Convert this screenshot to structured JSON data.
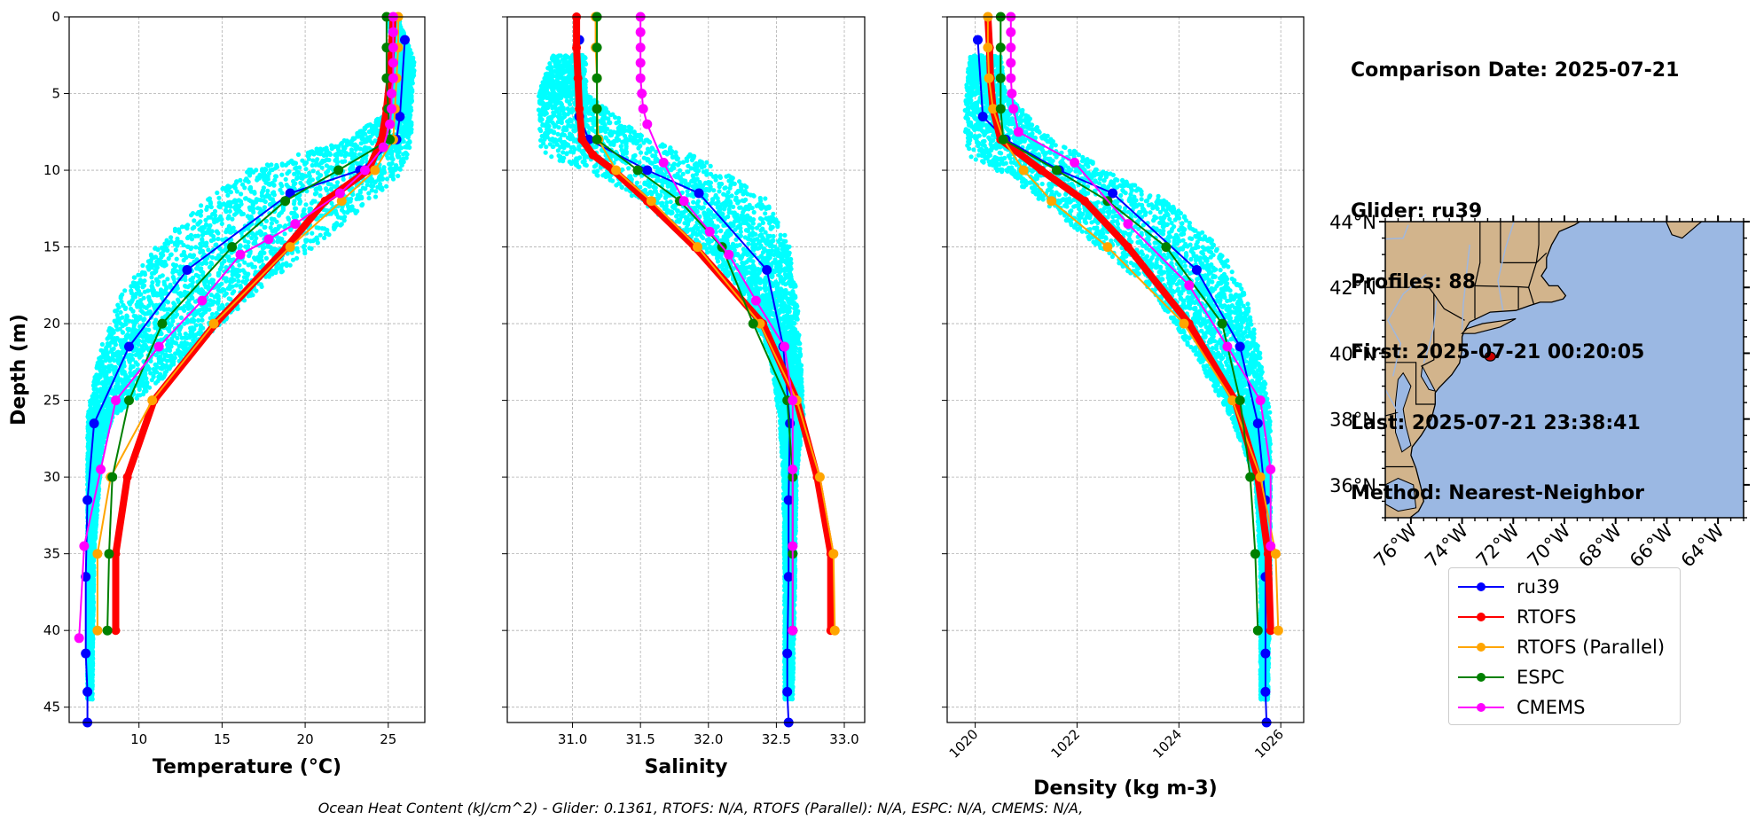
{
  "info": {
    "comparison_date": "Comparison Date: 2025-07-21",
    "glider": "Glider: ru39",
    "profiles": "Profiles: 88",
    "first": "First: 2025-07-21 00:20:05",
    "last": "Last: 2025-07-21 23:38:41",
    "method": "Method: Nearest-Neighbor"
  },
  "footer": "Ocean Heat Content (kJ/cm^2) - Glider: 0.1361,  RTOFS: N/A,  RTOFS (Parallel): N/A,  ESPC: N/A,  CMEMS: N/A,",
  "colors": {
    "ru39": "#0000ff",
    "rtofs": "#ff0000",
    "rtofs_parallel": "#ffa500",
    "espc": "#008000",
    "cmems": "#ff00ff",
    "scatter": "#00ffff",
    "land": "#d2b48c",
    "ocean": "#9bb8e3",
    "track": "#cc0000"
  },
  "legend": [
    {
      "name": "ru39",
      "color": "#0000ff"
    },
    {
      "name": "RTOFS",
      "color": "#ff0000"
    },
    {
      "name": "RTOFS (Parallel)",
      "color": "#ffa500"
    },
    {
      "name": "ESPC",
      "color": "#008000"
    },
    {
      "name": "CMEMS",
      "color": "#ff00ff"
    }
  ],
  "chart_data": [
    {
      "type": "line",
      "xlabel": "Temperature (°C)",
      "ylabel": "Depth (m)",
      "xlim": [
        5.8,
        27.2
      ],
      "ylim": [
        46,
        0
      ],
      "xticks": [
        10,
        15,
        20,
        25
      ],
      "yticks": [
        0,
        5,
        10,
        15,
        20,
        25,
        30,
        35,
        40,
        45
      ],
      "grid": true,
      "scatter": {
        "name": "glider profiles",
        "color": "#00ffff",
        "envelope": [
          [
            0,
            24.9,
            25.6
          ],
          [
            3,
            25.5,
            26.6
          ],
          [
            6,
            25.2,
            26.4
          ],
          [
            8,
            22.5,
            26.4
          ],
          [
            9,
            19.5,
            26.2
          ],
          [
            10,
            16.5,
            26.0
          ],
          [
            12,
            14.0,
            24.0
          ],
          [
            15,
            11.0,
            20.5
          ],
          [
            18,
            9.0,
            17.0
          ],
          [
            21,
            7.8,
            14.0
          ],
          [
            24,
            7.2,
            11.0
          ],
          [
            26,
            6.9,
            8.5
          ],
          [
            28,
            6.9,
            7.8
          ],
          [
            35,
            6.9,
            7.3
          ],
          [
            44.5,
            6.9,
            7.2
          ]
        ]
      },
      "series": [
        {
          "name": "ru39",
          "style": "thin",
          "x": [
            26.0,
            25.7,
            25.5,
            23.3,
            19.1,
            12.9,
            9.4,
            7.3,
            6.9,
            6.8,
            6.8,
            6.9,
            6.9
          ],
          "y": [
            1.5,
            6.5,
            8.0,
            10.0,
            11.5,
            16.5,
            21.5,
            26.5,
            31.5,
            36.5,
            41.5,
            44.0,
            46.0
          ]
        },
        {
          "name": "RTOFS",
          "style": "thick",
          "x": [
            25.3,
            25.2,
            25.1,
            24.9,
            24.6,
            23.8,
            21.2,
            18.9,
            14.6,
            10.9,
            9.3,
            8.6,
            8.6
          ],
          "y": [
            0,
            2,
            4,
            6,
            8,
            10,
            12,
            15,
            20,
            25,
            30,
            35,
            40
          ]
        },
        {
          "name": "RTOFS (Parallel)",
          "style": "thin",
          "x": [
            25.6,
            25.6,
            25.5,
            25.4,
            25.3,
            24.2,
            22.2,
            19.1,
            14.5,
            10.8,
            8.3,
            7.5,
            7.5
          ],
          "y": [
            0,
            2,
            4,
            6,
            8,
            10,
            12,
            15,
            20,
            25,
            30,
            35,
            40
          ]
        },
        {
          "name": "ESPC",
          "style": "thin",
          "x": [
            24.9,
            24.9,
            24.9,
            25.0,
            25.1,
            22.0,
            18.8,
            15.6,
            11.4,
            9.4,
            8.4,
            8.2,
            8.1
          ],
          "y": [
            0,
            2,
            4,
            6,
            8,
            10,
            12,
            15,
            20,
            25,
            30,
            35,
            40
          ]
        },
        {
          "name": "CMEMS",
          "style": "thin",
          "x": [
            25.3,
            25.3,
            25.3,
            25.3,
            25.3,
            25.2,
            25.2,
            25.1,
            24.7,
            23.6,
            22.1,
            19.4,
            17.8,
            16.1,
            13.8,
            11.2,
            8.6,
            7.7,
            6.7,
            6.4
          ],
          "y": [
            0,
            1,
            2,
            3,
            4,
            5,
            6,
            7,
            8.5,
            10,
            11.5,
            13.5,
            14.5,
            15.5,
            18.5,
            21.5,
            25,
            29.5,
            34.5,
            40.5
          ]
        }
      ]
    },
    {
      "type": "line",
      "xlabel": "Salinity",
      "ylabel": "",
      "xlim": [
        30.52,
        33.15
      ],
      "ylim": [
        46,
        0
      ],
      "xticks": [
        31.0,
        31.5,
        32.0,
        32.5,
        33.0
      ],
      "yticks": [
        0,
        5,
        10,
        15,
        20,
        25,
        30,
        35,
        40,
        45
      ],
      "grid": true,
      "scatter": {
        "name": "glider profiles",
        "color": "#00ffff",
        "envelope": [
          [
            2.5,
            30.85,
            31.1
          ],
          [
            5,
            30.75,
            31.1
          ],
          [
            8,
            30.75,
            31.55
          ],
          [
            9,
            30.78,
            31.9
          ],
          [
            10,
            31.1,
            32.1
          ],
          [
            12,
            31.5,
            32.45
          ],
          [
            15,
            31.95,
            32.6
          ],
          [
            18,
            32.25,
            32.65
          ],
          [
            22,
            32.45,
            32.68
          ],
          [
            26,
            32.52,
            32.7
          ],
          [
            30,
            32.55,
            32.65
          ],
          [
            36,
            32.56,
            32.64
          ],
          [
            44.5,
            32.56,
            32.62
          ]
        ]
      },
      "series": [
        {
          "name": "ru39",
          "style": "thin",
          "x": [
            31.05,
            31.05,
            31.12,
            31.55,
            31.93,
            32.43,
            32.55,
            32.6,
            32.59,
            32.59,
            32.58,
            32.58,
            32.59
          ],
          "y": [
            1.5,
            6.5,
            8.0,
            10.0,
            11.5,
            16.5,
            21.5,
            26.5,
            31.5,
            36.5,
            41.5,
            44.0,
            46.0
          ]
        },
        {
          "name": "RTOFS",
          "style": "thick",
          "x": [
            31.03,
            31.03,
            31.04,
            31.05,
            31.07,
            31.15,
            31.3,
            31.55,
            31.9,
            32.4,
            32.65,
            32.8,
            32.9,
            32.9
          ],
          "y": [
            0,
            2,
            4,
            6,
            8,
            9,
            10,
            12,
            15,
            20,
            25,
            30,
            35,
            40
          ]
        },
        {
          "name": "RTOFS (Parallel)",
          "style": "thin",
          "x": [
            31.17,
            31.17,
            31.18,
            31.18,
            31.19,
            31.32,
            31.58,
            31.92,
            32.38,
            32.65,
            32.82,
            32.92,
            32.93
          ],
          "y": [
            0,
            2,
            4,
            6,
            8,
            10,
            12,
            15,
            20,
            25,
            30,
            35,
            40
          ]
        },
        {
          "name": "ESPC",
          "style": "thin",
          "x": [
            31.18,
            31.18,
            31.18,
            31.18,
            31.18,
            31.48,
            31.79,
            32.1,
            32.33,
            32.58,
            32.62,
            32.62,
            32.62
          ],
          "y": [
            0,
            2,
            4,
            6,
            8,
            10,
            12,
            15,
            20,
            25,
            30,
            35,
            40
          ]
        },
        {
          "name": "CMEMS",
          "style": "thin",
          "x": [
            31.5,
            31.5,
            31.5,
            31.5,
            31.5,
            31.51,
            31.52,
            31.55,
            31.67,
            31.82,
            32.01,
            32.15,
            32.35,
            32.56,
            32.62,
            32.62,
            32.62,
            32.62
          ],
          "y": [
            0,
            1,
            2,
            3,
            4,
            5,
            6,
            7,
            9.5,
            12,
            14,
            15.5,
            18.5,
            21.5,
            25,
            29.5,
            34.5,
            40
          ]
        }
      ]
    },
    {
      "type": "line",
      "xlabel": "Density (kg m-3)",
      "ylabel": "",
      "xlim": [
        1019.45,
        1026.45
      ],
      "ylim": [
        46,
        0
      ],
      "xticks": [
        1020,
        1022,
        1024,
        1026
      ],
      "yticks": [
        0,
        5,
        10,
        15,
        20,
        25,
        30,
        35,
        40,
        45
      ],
      "grid": true,
      "scatter": {
        "name": "glider profiles",
        "color": "#00ffff",
        "envelope": [
          [
            2.5,
            1019.9,
            1020.5
          ],
          [
            5,
            1019.8,
            1020.6
          ],
          [
            8,
            1019.8,
            1021.5
          ],
          [
            9,
            1019.85,
            1022.1
          ],
          [
            10,
            1020.4,
            1022.6
          ],
          [
            12,
            1021.3,
            1023.8
          ],
          [
            15,
            1022.4,
            1024.8
          ],
          [
            18,
            1023.5,
            1025.3
          ],
          [
            22,
            1024.3,
            1025.6
          ],
          [
            26,
            1025.0,
            1025.8
          ],
          [
            30,
            1025.5,
            1025.8
          ],
          [
            36,
            1025.6,
            1025.8
          ],
          [
            44.5,
            1025.6,
            1025.75
          ]
        ]
      },
      "series": [
        {
          "name": "ru39",
          "style": "thin",
          "x": [
            1020.05,
            1020.15,
            1020.6,
            1021.65,
            1022.7,
            1024.35,
            1025.2,
            1025.55,
            1025.7,
            1025.7,
            1025.7,
            1025.7,
            1025.72
          ],
          "y": [
            1.5,
            6.5,
            8.0,
            10.0,
            11.5,
            16.5,
            21.5,
            26.5,
            31.5,
            36.5,
            41.5,
            44.0,
            46.0
          ]
        },
        {
          "name": "RTOFS",
          "style": "thick",
          "x": [
            1020.25,
            1020.28,
            1020.3,
            1020.35,
            1020.5,
            1021.3,
            1022.15,
            1023.0,
            1024.2,
            1025.1,
            1025.55,
            1025.75,
            1025.8
          ],
          "y": [
            0,
            2,
            4,
            6,
            8,
            10,
            12,
            15,
            20,
            25,
            30,
            35,
            40
          ]
        },
        {
          "name": "RTOFS (Parallel)",
          "style": "thin",
          "x": [
            1020.25,
            1020.25,
            1020.27,
            1020.35,
            1020.55,
            1020.95,
            1021.5,
            1022.6,
            1024.1,
            1025.05,
            1025.6,
            1025.9,
            1025.95
          ],
          "y": [
            0,
            2,
            4,
            6,
            8,
            10,
            12,
            15,
            20,
            25,
            30,
            35,
            40
          ]
        },
        {
          "name": "ESPC",
          "style": "thin",
          "x": [
            1020.5,
            1020.5,
            1020.5,
            1020.5,
            1020.55,
            1021.6,
            1022.6,
            1023.75,
            1024.85,
            1025.2,
            1025.4,
            1025.5,
            1025.55
          ],
          "y": [
            0,
            2,
            4,
            6,
            8,
            10,
            12,
            15,
            20,
            25,
            30,
            35,
            40
          ]
        },
        {
          "name": "CMEMS",
          "style": "thin",
          "x": [
            1020.7,
            1020.7,
            1020.7,
            1020.7,
            1020.7,
            1020.72,
            1020.75,
            1020.85,
            1021.95,
            1023.0,
            1024.2,
            1024.95,
            1025.6,
            1025.8,
            1025.8
          ],
          "y": [
            0,
            1,
            2,
            3,
            4,
            5,
            6,
            7.5,
            9.5,
            13.5,
            17.5,
            21.5,
            25,
            29.5,
            34.5
          ]
        }
      ]
    }
  ],
  "map": {
    "lat_ticks": [
      "44°N",
      "42°N",
      "40°N",
      "38°N",
      "36°N"
    ],
    "lon_ticks": [
      "76°W",
      "74°W",
      "72°W",
      "70°W",
      "68°W",
      "66°W",
      "64°W"
    ],
    "glider_position": [
      -72.9,
      39.9
    ]
  }
}
